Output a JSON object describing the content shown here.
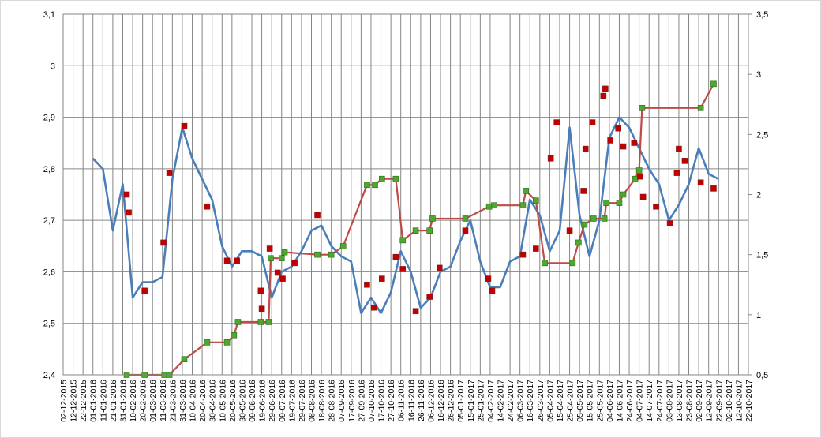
{
  "chart_data": {
    "type": "line",
    "categories": [
      "02-12-2015",
      "12-12-2015",
      "22-12-2015",
      "01-01-2016",
      "11-01-2016",
      "21-01-2016",
      "31-01-2016",
      "10-02-2016",
      "20-02-2016",
      "01-03-2016",
      "11-03-2016",
      "21-03-2016",
      "31-03-2016",
      "10-04-2016",
      "20-04-2016",
      "30-04-2016",
      "10-05-2016",
      "20-05-2016",
      "30-05-2016",
      "09-06-2016",
      "19-06-2016",
      "29-06-2016",
      "09-07-2016",
      "19-07-2016",
      "29-07-2016",
      "08-08-2016",
      "18-08-2016",
      "28-08-2016",
      "07-09-2016",
      "17-09-2016",
      "27-09-2016",
      "07-10-2016",
      "17-10-2016",
      "27-10-2016",
      "06-11-2016",
      "16-11-2016",
      "26-11-2016",
      "06-12-2016",
      "16-12-2016",
      "26-12-2016",
      "05-01-2017",
      "15-01-2017",
      "25-01-2017",
      "04-02-2017",
      "14-02-2017",
      "24-02-2017",
      "06-03-2017",
      "16-03-2017",
      "26-03-2017",
      "05-04-2017",
      "15-04-2017",
      "25-04-2017",
      "05-05-2017",
      "15-05-2017",
      "25-05-2017",
      "04-06-2017",
      "14-06-2017",
      "24-06-2017",
      "04-07-2017",
      "14-07-2017",
      "24-07-2017",
      "03-08-2017",
      "13-08-2017",
      "23-08-2017",
      "02-09-2017",
      "12-09-2017",
      "22-09-2017",
      "02-10-2017",
      "12-10-2017",
      "22-10-2017"
    ],
    "series": [
      {
        "color": "#4a7ebb",
        "values": [
          null,
          null,
          null,
          2.82,
          2.8,
          2.68,
          2.77,
          2.55,
          2.58,
          2.58,
          2.59,
          2.78,
          2.88,
          2.82,
          2.78,
          2.74,
          2.65,
          2.61,
          2.64,
          2.64,
          2.63,
          2.55,
          2.6,
          2.61,
          2.64,
          2.68,
          2.69,
          2.65,
          2.63,
          2.62,
          2.52,
          2.55,
          2.52,
          2.56,
          2.64,
          2.6,
          2.53,
          2.55,
          2.6,
          2.61,
          2.66,
          2.7,
          2.62,
          2.57,
          2.57,
          2.62,
          2.63,
          2.74,
          2.71,
          2.64,
          2.68,
          2.88,
          2.71,
          2.63,
          2.7,
          2.86,
          2.9,
          2.88,
          2.84,
          2.8,
          2.77,
          2.7,
          2.73,
          2.77,
          2.84,
          2.79,
          2.78,
          null,
          null,
          null
        ]
      },
      {
        "color": "#be4b48",
        "marker_color": "#4ea72e",
        "axis": "y2",
        "x": [
          "04-02-2016",
          "22-02-2016",
          "13-03-2016",
          "18-03-2016",
          "02-04-2016",
          "25-04-2016",
          "15-05-2016",
          "22-05-2016",
          "26-05-2016",
          "18-06-2016",
          "26-06-2016",
          "28-06-2016",
          "09-07-2016",
          "12-07-2016",
          "14-08-2016",
          "28-08-2016",
          "09-09-2016",
          "03-10-2016",
          "11-10-2016",
          "18-10-2016",
          "01-11-2016",
          "08-11-2016",
          "21-11-2016",
          "05-12-2016",
          "08-12-2016",
          "10-01-2017",
          "03-02-2017",
          "08-02-2017",
          "09-03-2017",
          "12-03-2017",
          "22-03-2017",
          "31-03-2017",
          "28-04-2017",
          "04-05-2017",
          "10-05-2017",
          "19-05-2017",
          "30-05-2017",
          "01-06-2017",
          "14-06-2017",
          "18-06-2017",
          "30-06-2017",
          "04-07-2017",
          "07-07-2017",
          "04-09-2017",
          "17-09-2017"
        ],
        "values": [
          0.5,
          0.5,
          0.5,
          0.5,
          0.63,
          0.77,
          0.77,
          0.83,
          0.94,
          0.94,
          0.94,
          1.47,
          1.47,
          1.52,
          1.5,
          1.5,
          1.57,
          2.08,
          2.08,
          2.13,
          2.13,
          1.62,
          1.7,
          1.7,
          1.8,
          1.8,
          1.9,
          1.91,
          1.91,
          2.03,
          1.95,
          1.43,
          1.43,
          1.6,
          1.75,
          1.8,
          1.8,
          1.93,
          1.93,
          2.0,
          2.13,
          2.2,
          2.72,
          2.72,
          2.92
        ]
      },
      {
        "color": "#c00000",
        "axis": "y2",
        "mode": "markers",
        "x": [
          "04-02-2016",
          "06-02-2016",
          "22-02-2016",
          "12-03-2016",
          "18-03-2016",
          "02-04-2016",
          "25-04-2016",
          "15-05-2016",
          "25-05-2016",
          "18-06-2016",
          "19-06-2016",
          "27-06-2016",
          "05-07-2016",
          "10-07-2016",
          "22-07-2016",
          "14-08-2016",
          "03-10-2016",
          "10-10-2016",
          "18-10-2016",
          "01-11-2016",
          "08-11-2016",
          "21-11-2016",
          "05-12-2016",
          "15-12-2016",
          "10-01-2017",
          "02-02-2017",
          "06-02-2017",
          "09-03-2017",
          "22-03-2017",
          "06-04-2017",
          "12-04-2017",
          "25-04-2017",
          "09-05-2017",
          "11-05-2017",
          "18-05-2017",
          "29-05-2017",
          "31-05-2017",
          "05-06-2017",
          "13-06-2017",
          "18-06-2017",
          "29-06-2017",
          "05-07-2017",
          "08-07-2017",
          "21-07-2017",
          "04-08-2017",
          "11-08-2017",
          "13-08-2017",
          "19-08-2017",
          "04-09-2017",
          "17-09-2017"
        ],
        "values": [
          2.0,
          1.85,
          1.2,
          1.6,
          2.18,
          2.57,
          1.9,
          1.45,
          1.45,
          1.2,
          1.05,
          1.55,
          1.35,
          1.3,
          1.43,
          1.83,
          1.25,
          1.06,
          1.3,
          1.48,
          1.38,
          1.03,
          1.15,
          1.39,
          1.7,
          1.3,
          1.2,
          1.5,
          1.55,
          2.3,
          2.6,
          1.7,
          2.03,
          2.38,
          2.6,
          2.82,
          2.88,
          2.45,
          2.55,
          2.4,
          2.43,
          2.15,
          1.98,
          1.9,
          1.76,
          2.18,
          2.38,
          2.28,
          2.1,
          2.05
        ]
      }
    ],
    "ylim": [
      2.4,
      3.1
    ],
    "yticks": [
      2.4,
      2.5,
      2.6,
      2.7,
      2.8,
      2.9,
      3,
      3.1
    ],
    "y2lim": [
      0.5,
      3.5
    ],
    "y2ticks": [
      0.5,
      1,
      1.5,
      2,
      2.5,
      3,
      3.5
    ],
    "tick_labels": {
      "y": [
        "2,4",
        "2,5",
        "2,6",
        "2,7",
        "2,8",
        "2,9",
        "3",
        "3,1"
      ],
      "y2": [
        "0,5",
        "1",
        "1,5",
        "2",
        "2,5",
        "3",
        "3,5"
      ]
    },
    "grid": true
  }
}
